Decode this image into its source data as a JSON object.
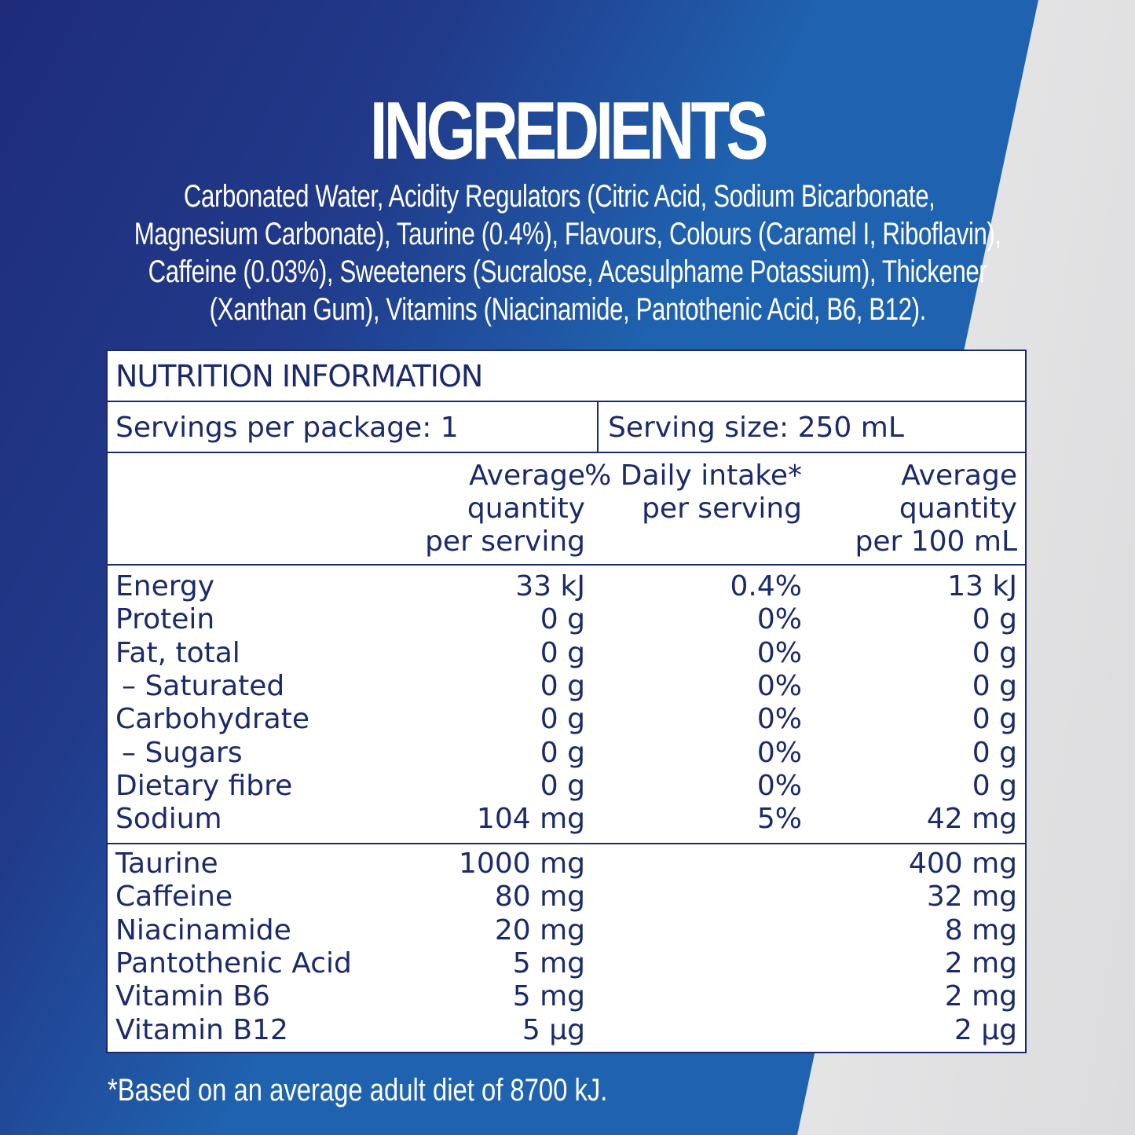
{
  "colors": {
    "blue_dark": "#1e2c7a",
    "blue_light": "#1f63b0",
    "navy_text": "#1c2a6c",
    "white": "#ffffff"
  },
  "title": "INGREDIENTS",
  "ingredients_lines": [
    "Carbonated Water, Acidity Regulators (Citric Acid, Sodium Bicarbonate,",
    "Magnesium Carbonate), Taurine (0.4%), Flavours, Colours (Caramel I, Riboflavin),",
    "Caffeine (0.03%), Sweeteners (Sucralose, Acesulphame Potassium), Thickener",
    "(Xanthan Gum), Vitamins (Niacinamide, Pantothenic Acid, B6, B12)."
  ],
  "nutrition": {
    "title": "NUTRITION INFORMATION",
    "servings_per_package": "Servings per package: 1",
    "serving_size": "Serving size: 250 mL",
    "headers": {
      "per_serving": [
        "Average",
        "quantity",
        "per serving"
      ],
      "daily_intake": [
        "% Daily intake*",
        "per serving"
      ],
      "per_100ml": [
        "Average",
        "quantity",
        "per 100 mL"
      ]
    },
    "nutrients": [
      {
        "name": "Energy",
        "serving": "33 kJ",
        "di": "0.4%",
        "per100": "13 kJ"
      },
      {
        "name": "Protein",
        "serving": "0 g",
        "di": "0%",
        "per100": "0 g"
      },
      {
        "name": "Fat, total",
        "serving": "0 g",
        "di": "0%",
        "per100": "0 g"
      },
      {
        "name": "– Saturated",
        "serving": "0 g",
        "di": "0%",
        "per100": "0 g"
      },
      {
        "name": "Carbohydrate",
        "serving": "0 g",
        "di": "0%",
        "per100": "0 g"
      },
      {
        "name": "– Sugars",
        "serving": "0 g",
        "di": "0%",
        "per100": "0 g"
      },
      {
        "name": "Dietary fibre",
        "serving": "0 g",
        "di": "0%",
        "per100": "0 g"
      },
      {
        "name": "Sodium",
        "serving": "104 mg",
        "di": "5%",
        "per100": "42 mg"
      }
    ],
    "extras": [
      {
        "name": "Taurine",
        "serving": "1000 mg",
        "per100": "400 mg"
      },
      {
        "name": "Caffeine",
        "serving": "80 mg",
        "per100": "32 mg"
      },
      {
        "name": "Niacinamide",
        "serving": "20 mg",
        "per100": "8 mg"
      },
      {
        "name": "Pantothenic Acid",
        "serving": "5 mg",
        "per100": "2 mg"
      },
      {
        "name": "Vitamin B6",
        "serving": "5 mg",
        "per100": "2 mg"
      },
      {
        "name": "Vitamin B12",
        "serving": "5 µg",
        "per100": "2 µg"
      }
    ]
  },
  "footnote": "*Based on an average adult diet of 8700 kJ."
}
